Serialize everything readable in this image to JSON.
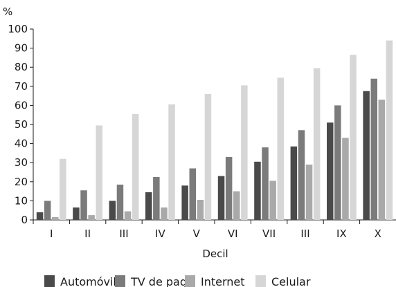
{
  "chart_data": {
    "type": "bar",
    "ylabel": "%",
    "xlabel": "Decil",
    "ylim": [
      0,
      100
    ],
    "yticks": [
      0,
      10,
      20,
      30,
      40,
      50,
      60,
      70,
      80,
      90,
      100
    ],
    "grid": false,
    "legend_position": "bottom",
    "categories": [
      "I",
      "II",
      "III",
      "IV",
      "V",
      "VI",
      "VII",
      "III",
      "IX",
      "X"
    ],
    "series": [
      {
        "name": "Automóvil",
        "color": "#4a4a4a",
        "values": [
          4,
          6.5,
          10,
          14.5,
          18,
          23,
          30.5,
          38.5,
          51,
          67.5
        ]
      },
      {
        "name": "TV de paga",
        "color": "#7b7b7b",
        "values": [
          10,
          15.5,
          18.5,
          22.5,
          27,
          33,
          38,
          47,
          60,
          74
        ]
      },
      {
        "name": "Internet",
        "color": "#a9a9a9",
        "values": [
          1.5,
          2.5,
          4.5,
          6.5,
          10.5,
          15,
          20.5,
          29,
          43,
          63
        ]
      },
      {
        "name": "Celular",
        "color": "#d6d6d6",
        "values": [
          32,
          49.5,
          55.5,
          60.5,
          66,
          70.5,
          74.5,
          79.5,
          86.5,
          94
        ]
      }
    ]
  }
}
